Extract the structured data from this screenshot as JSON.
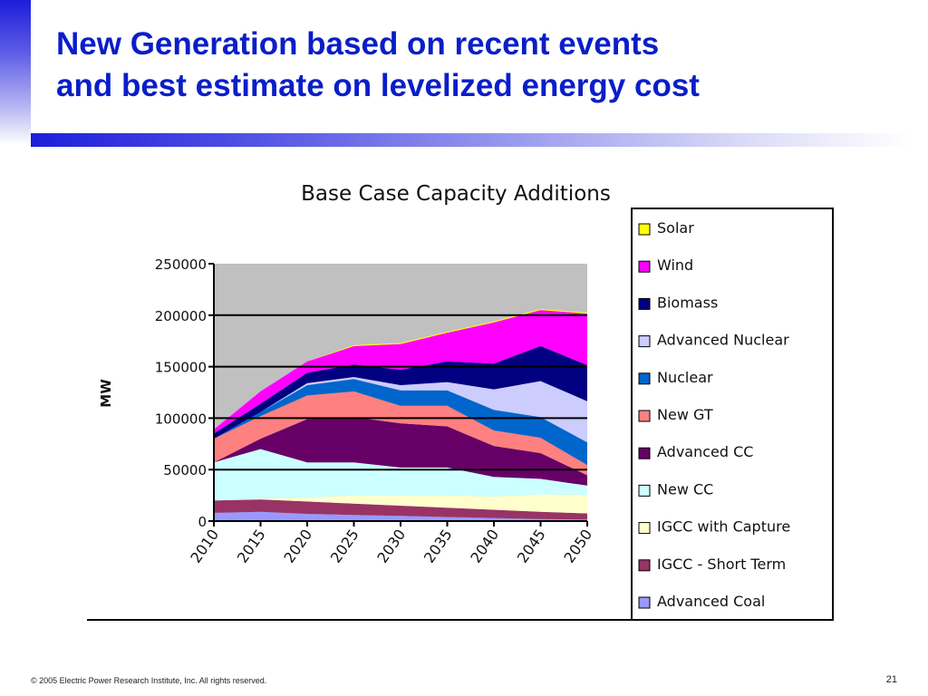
{
  "slide": {
    "title_line1": "New Generation based on recent events",
    "title_line2": "and best estimate on levelized energy cost",
    "footer": "© 2005 Electric Power Research Institute, Inc. All rights reserved.",
    "page_number": "21"
  },
  "chart_data": {
    "type": "area",
    "stacked": true,
    "title": "Base Case Capacity Additions",
    "xlabel": "",
    "ylabel": "MW",
    "ylim": [
      0,
      250000
    ],
    "grid": true,
    "legend_position": "right",
    "background_color": "#c0c0c0",
    "x": [
      "2010",
      "2015",
      "2020",
      "2025",
      "2030",
      "2035",
      "2040",
      "2045",
      "2050"
    ],
    "y_ticks": [
      "250000",
      "200000",
      "150000",
      "100000",
      "50000",
      "0"
    ],
    "series": [
      {
        "name": "Advanced Coal",
        "color": "#9999ff",
        "values": [
          8000,
          9000,
          7000,
          6000,
          5000,
          4000,
          3000,
          2000,
          1500
        ]
      },
      {
        "name": "IGCC - Short Term",
        "color": "#993366",
        "values": [
          12000,
          12000,
          12000,
          11000,
          10000,
          9000,
          8000,
          7000,
          6000
        ]
      },
      {
        "name": "IGCC with Capture",
        "color": "#ffffcc",
        "values": [
          0,
          1000,
          4000,
          8000,
          10000,
          12000,
          13000,
          17000,
          18000
        ]
      },
      {
        "name": "New CC",
        "color": "#ccffff",
        "values": [
          37000,
          48000,
          34000,
          32000,
          27000,
          27000,
          19000,
          15000,
          9000
        ]
      },
      {
        "name": "Advanced CC",
        "color": "#660066",
        "values": [
          0,
          10000,
          42000,
          44000,
          43000,
          40000,
          30000,
          25000,
          10000
        ]
      },
      {
        "name": "New GT",
        "color": "#ff8080",
        "values": [
          23000,
          22000,
          23000,
          25000,
          17000,
          20000,
          15000,
          15000,
          10000
        ]
      },
      {
        "name": "Nuclear",
        "color": "#0066cc",
        "values": [
          0,
          4000,
          10000,
          12000,
          15000,
          15000,
          20000,
          20000,
          22000
        ]
      },
      {
        "name": "Advanced Nuclear",
        "color": "#ccccff",
        "values": [
          0,
          0,
          2000,
          2000,
          5000,
          8000,
          20000,
          35000,
          40000
        ]
      },
      {
        "name": "Biomass",
        "color": "#000080",
        "values": [
          5000,
          8000,
          10000,
          12000,
          15000,
          20000,
          25000,
          34000,
          35000
        ]
      },
      {
        "name": "Wind",
        "color": "#ff00ff",
        "values": [
          4000,
          12000,
          11000,
          18000,
          25000,
          28000,
          40000,
          35000,
          50000
        ]
      },
      {
        "name": "Solar",
        "color": "#ffff00",
        "values": [
          0,
          0,
          0,
          1000,
          1000,
          1000,
          1000,
          1000,
          1000
        ]
      }
    ]
  }
}
